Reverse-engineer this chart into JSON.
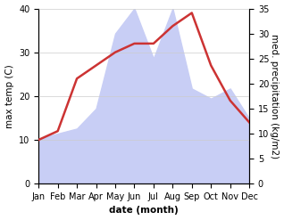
{
  "months": [
    "Jan",
    "Feb",
    "Mar",
    "Apr",
    "May",
    "Jun",
    "Jul",
    "Aug",
    "Sep",
    "Oct",
    "Nov",
    "Dec"
  ],
  "temperature": [
    10,
    12,
    24,
    27,
    30,
    32,
    32,
    36,
    39,
    27,
    19,
    14
  ],
  "precipitation": [
    9,
    10,
    11,
    15,
    30,
    35,
    25,
    35,
    19,
    17,
    19,
    13
  ],
  "temp_color": "#cc3333",
  "precip_fill_color": "#c8cef5",
  "temp_ylim": [
    0,
    40
  ],
  "precip_ylim": [
    0,
    35
  ],
  "temp_yticks": [
    0,
    10,
    20,
    30,
    40
  ],
  "precip_yticks": [
    0,
    5,
    10,
    15,
    20,
    25,
    30,
    35
  ],
  "xlabel": "date (month)",
  "ylabel_left": "max temp (C)",
  "ylabel_right": "med. precipitation (kg/m2)",
  "bg_color": "#ffffff",
  "label_fontsize": 7.5,
  "tick_fontsize": 7,
  "line_width": 1.8
}
